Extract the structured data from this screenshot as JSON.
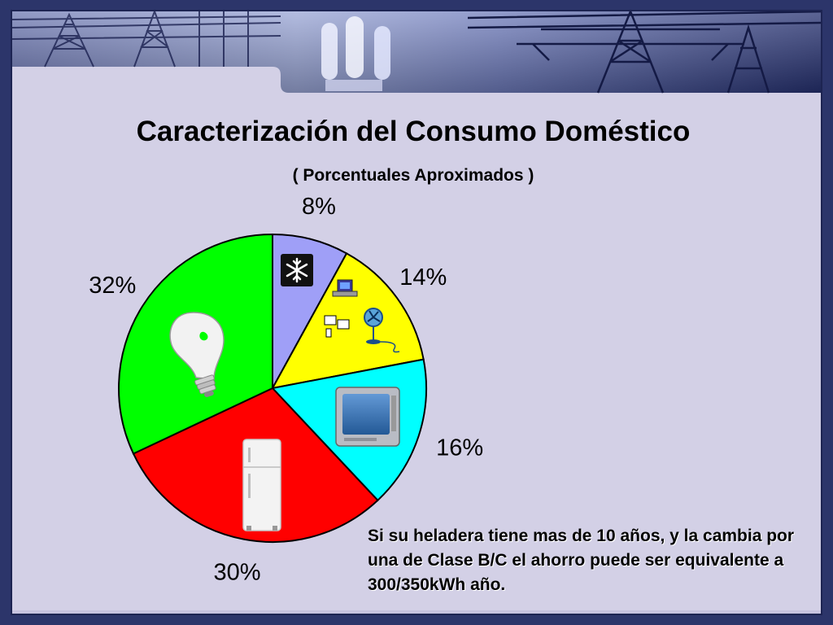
{
  "slide": {
    "title": "Caracterización del Consumo Doméstico",
    "subtitle": "( Porcentuales Aproximados )",
    "note": "Si su heladera tiene mas de 10 años, y la cambia por una de Clase B/C el ahorro puede ser equivalente a 300/350kWh año."
  },
  "colors": {
    "frame": "#2c356a",
    "panel": "#d3d0e6",
    "banner_dark": "#1f2a5e",
    "banner_light": "#9aa6d6"
  },
  "chart_data": {
    "type": "pie",
    "title": "Caracterización del Consumo Doméstico",
    "subtitle": "( Porcentuales Aproximados )",
    "start_angle_deg": 0,
    "direction": "clockwise",
    "slices": [
      {
        "label": "8%",
        "value": 8,
        "color": "#9f9ff7",
        "icon": "snowflake-icon"
      },
      {
        "label": "14%",
        "value": 14,
        "color": "#ffff00",
        "icon": "computer-and-fan-icon"
      },
      {
        "label": "16%",
        "value": 16,
        "color": "#00ffff",
        "icon": "television-icon"
      },
      {
        "label": "30%",
        "value": 30,
        "color": "#ff0000",
        "icon": "refrigerator-icon"
      },
      {
        "label": "32%",
        "value": 32,
        "color": "#00ff00",
        "icon": "light-bulb-icon"
      }
    ]
  }
}
